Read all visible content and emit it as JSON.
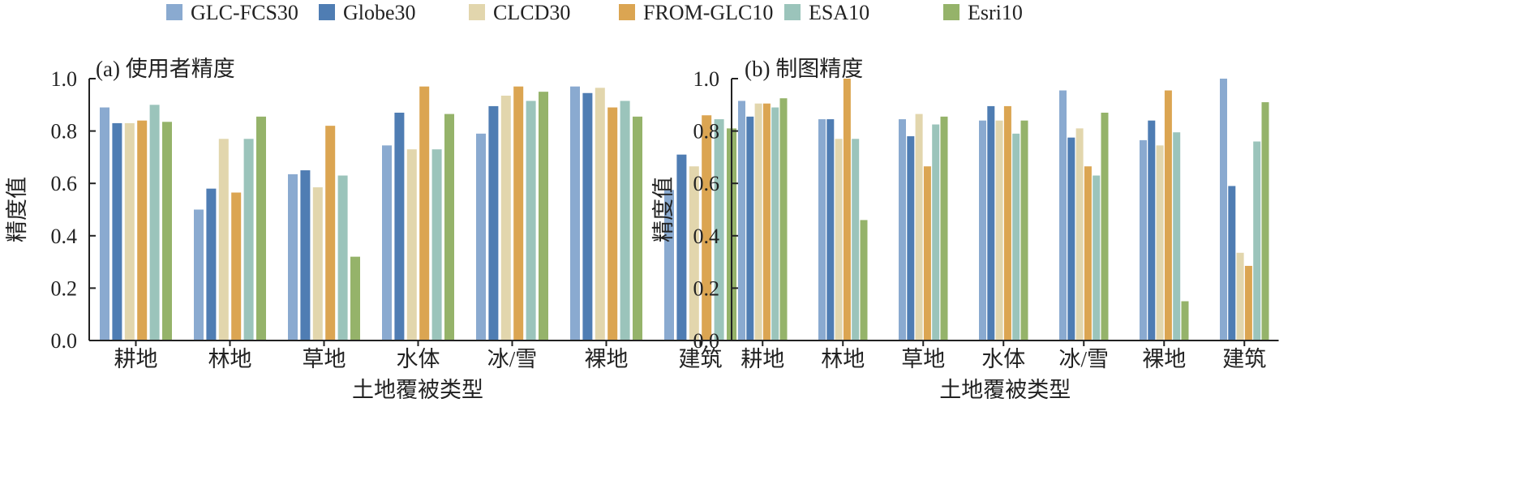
{
  "chart_data": [
    {
      "type": "bar",
      "title": "(a) 使用者精度",
      "xlabel": "土地覆被类型",
      "ylabel": "精度值",
      "ylim": [
        0,
        1.0
      ],
      "yticks": [
        "0.0",
        "0.2",
        "0.4",
        "0.6",
        "0.8",
        "1.0"
      ],
      "categories": [
        "耕地",
        "林地",
        "草地",
        "水体",
        "冰/雪",
        "裸地",
        "建筑"
      ],
      "series": [
        {
          "name": "GLC-FCS30",
          "color": "#8aaad0",
          "values": [
            0.89,
            0.5,
            0.635,
            0.745,
            0.79,
            0.97,
            0.575
          ]
        },
        {
          "name": "Globe30",
          "color": "#4f7db3",
          "values": [
            0.83,
            0.58,
            0.65,
            0.87,
            0.895,
            0.945,
            0.71
          ]
        },
        {
          "name": "CLCD30",
          "color": "#e2d6ad",
          "values": [
            0.83,
            0.77,
            0.585,
            0.73,
            0.935,
            0.965,
            0.665
          ]
        },
        {
          "name": "FROM-GLC10",
          "color": "#dba552",
          "values": [
            0.84,
            0.565,
            0.82,
            0.97,
            0.97,
            0.89,
            0.86
          ]
        },
        {
          "name": "ESA10",
          "color": "#9bc4bb",
          "values": [
            0.9,
            0.77,
            0.63,
            0.73,
            0.915,
            0.915,
            0.845
          ]
        },
        {
          "name": "Esri10",
          "color": "#95b36a",
          "values": [
            0.835,
            0.855,
            0.32,
            0.865,
            0.95,
            0.855,
            0.81
          ]
        }
      ]
    },
    {
      "type": "bar",
      "title": "(b) 制图精度",
      "xlabel": "土地覆被类型",
      "ylabel": "精度值",
      "ylim": [
        0,
        1.0
      ],
      "yticks": [
        "0.0",
        "0.2",
        "0.4",
        "0.6",
        "0.8",
        "1.0"
      ],
      "categories": [
        "耕地",
        "林地",
        "草地",
        "水体",
        "冰/雪",
        "裸地",
        "建筑"
      ],
      "series": [
        {
          "name": "GLC-FCS30",
          "color": "#8aaad0",
          "values": [
            0.915,
            0.845,
            0.845,
            0.84,
            0.955,
            0.765,
            1.0
          ]
        },
        {
          "name": "Globe30",
          "color": "#4f7db3",
          "values": [
            0.855,
            0.845,
            0.78,
            0.895,
            0.775,
            0.84,
            0.59
          ]
        },
        {
          "name": "CLCD30",
          "color": "#e2d6ad",
          "values": [
            0.905,
            0.77,
            0.865,
            0.84,
            0.81,
            0.745,
            0.335
          ]
        },
        {
          "name": "FROM-GLC10",
          "color": "#dba552",
          "values": [
            0.905,
            1.0,
            0.665,
            0.895,
            0.665,
            0.955,
            0.285
          ]
        },
        {
          "name": "ESA10",
          "color": "#9bc4bb",
          "values": [
            0.89,
            0.77,
            0.825,
            0.79,
            0.63,
            0.795,
            0.76
          ]
        },
        {
          "name": "Esri10",
          "color": "#95b36a",
          "values": [
            0.925,
            0.46,
            0.855,
            0.84,
            0.87,
            0.15,
            0.91
          ]
        }
      ]
    }
  ],
  "legend": {
    "placement": "top"
  }
}
